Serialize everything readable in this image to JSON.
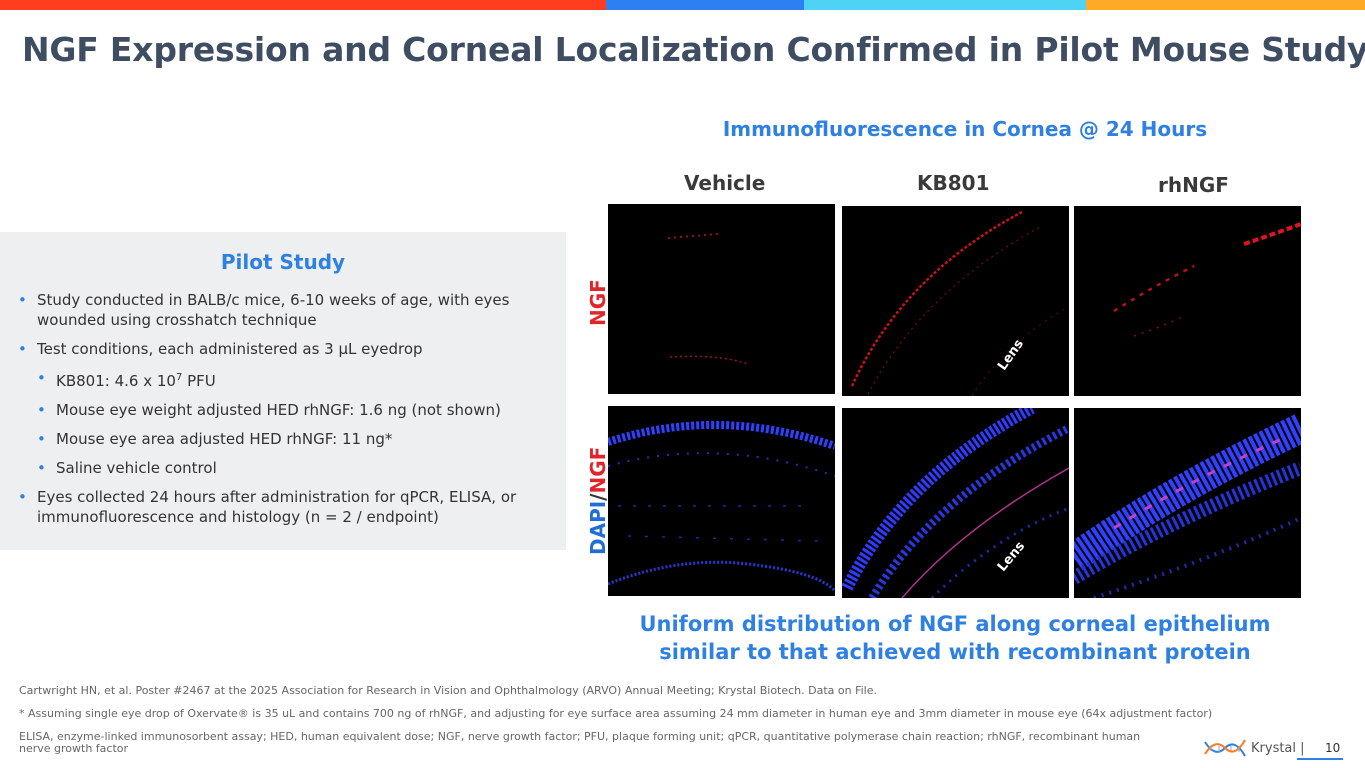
{
  "colors": {
    "bar_red": "#ff3d1f",
    "bar_blue": "#2d7ff2",
    "bar_cyan": "#4fd3f5",
    "bar_orange": "#ffaa27",
    "accent_blue": "#2f80e3",
    "label_red": "#e2252b",
    "label_blue": "#1f6fd6"
  },
  "title": "NGF Expression and Corneal Localization Confirmed in Pilot Mouse Study",
  "pilot": {
    "title": "Pilot Study",
    "bullets": [
      {
        "text": "Study conducted in BALB/c mice, 6-10 weeks of age, with eyes wounded using crosshatch technique",
        "level": 1
      },
      {
        "text": "Test conditions, each administered as 3 µL eyedrop",
        "level": 1
      },
      {
        "text_before": "KB801: 4.6 x 10",
        "superscript": "7",
        "text_after": " PFU",
        "level": 2
      },
      {
        "text": "Mouse eye weight adjusted HED rhNGF: 1.6 ng (not shown)",
        "level": 2
      },
      {
        "text": "Mouse eye area adjusted HED rhNGF: 11 ng*",
        "level": 2
      },
      {
        "text": "Saline vehicle control",
        "level": 2
      },
      {
        "text": "Eyes collected 24 hours after administration for qPCR, ELISA, or immunofluorescence and histology (n = 2 / endpoint)",
        "level": 1
      }
    ]
  },
  "figure": {
    "title": "Immunofluorescence in Cornea @ 24 Hours",
    "columns": [
      "Vehicle",
      "KB801",
      "rhNGF"
    ],
    "row_ngf": "NGF",
    "row_dapi_a": "DAPI",
    "row_dapi_slash": "/",
    "row_dapi_b": "NGF",
    "lens_label": "Lens"
  },
  "conclusion": {
    "line1": "Uniform distribution of NGF along corneal epithelium",
    "line2": "similar to that achieved with recombinant protein"
  },
  "footnotes": {
    "ref": "Cartwright HN, et al. Poster #2467 at the 2025 Association for Research in Vision and Ophthalmology (ARVO) Annual Meeting; Krystal Biotech. Data on File.",
    "assumption": "* Assuming single eye drop of Oxervate® is 35 uL and contains 700 ng of rhNGF, and adjusting for eye surface area assuming 24 mm diameter in human eye and 3mm diameter in mouse eye (64x adjustment factor)",
    "abbrev": "ELISA, enzyme-linked immunosorbent assay; HED, human equivalent dose; NGF, nerve growth factor; PFU, plaque forming unit; qPCR, quantitative polymerase chain reaction; rhNGF, recombinant human nerve growth factor"
  },
  "brand": {
    "name": "Krystal |",
    "logo_icon": "dna-helix-icon",
    "page_number": "10"
  }
}
